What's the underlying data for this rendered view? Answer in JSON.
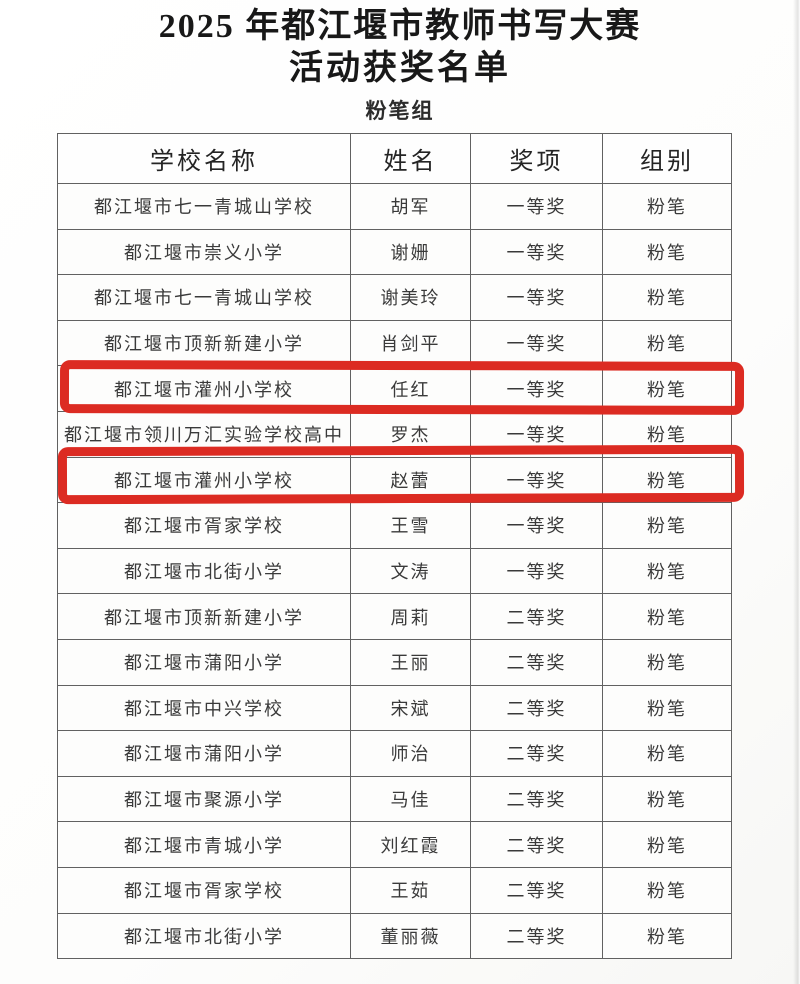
{
  "page": {
    "title_line1": "2025 年都江堰市教师书写大赛",
    "title_line2": "活动获奖名单",
    "group_label": "粉笔组"
  },
  "table": {
    "headers": [
      "学校名称",
      "姓名",
      "奖项",
      "组别"
    ],
    "rows": [
      {
        "school": "都江堰市七一青城山学校",
        "name": "胡军",
        "award": "一等奖",
        "group": "粉笔",
        "highlighted": false
      },
      {
        "school": "都江堰市崇义小学",
        "name": "谢姗",
        "award": "一等奖",
        "group": "粉笔",
        "highlighted": false
      },
      {
        "school": "都江堰市七一青城山学校",
        "name": "谢美玲",
        "award": "一等奖",
        "group": "粉笔",
        "highlighted": false
      },
      {
        "school": "都江堰市顶新新建小学",
        "name": "肖剑平",
        "award": "一等奖",
        "group": "粉笔",
        "highlighted": false
      },
      {
        "school": "都江堰市灌州小学校",
        "name": "任红",
        "award": "一等奖",
        "group": "粉笔",
        "highlighted": true
      },
      {
        "school": "都江堰市领川万汇实验学校高中",
        "name": "罗杰",
        "award": "一等奖",
        "group": "粉笔",
        "highlighted": false
      },
      {
        "school": "都江堰市灌州小学校",
        "name": "赵蕾",
        "award": "一等奖",
        "group": "粉笔",
        "highlighted": true
      },
      {
        "school": "都江堰市胥家学校",
        "name": "王雪",
        "award": "一等奖",
        "group": "粉笔",
        "highlighted": false
      },
      {
        "school": "都江堰市北街小学",
        "name": "文涛",
        "award": "一等奖",
        "group": "粉笔",
        "highlighted": false
      },
      {
        "school": "都江堰市顶新新建小学",
        "name": "周莉",
        "award": "二等奖",
        "group": "粉笔",
        "highlighted": false
      },
      {
        "school": "都江堰市蒲阳小学",
        "name": "王丽",
        "award": "二等奖",
        "group": "粉笔",
        "highlighted": false
      },
      {
        "school": "都江堰市中兴学校",
        "name": "宋斌",
        "award": "二等奖",
        "group": "粉笔",
        "highlighted": false
      },
      {
        "school": "都江堰市蒲阳小学",
        "name": "师治",
        "award": "二等奖",
        "group": "粉笔",
        "highlighted": false
      },
      {
        "school": "都江堰市聚源小学",
        "name": "马佳",
        "award": "二等奖",
        "group": "粉笔",
        "highlighted": false
      },
      {
        "school": "都江堰市青城小学",
        "name": "刘红霞",
        "award": "二等奖",
        "group": "粉笔",
        "highlighted": false
      },
      {
        "school": "都江堰市胥家学校",
        "name": "王茹",
        "award": "二等奖",
        "group": "粉笔",
        "highlighted": false
      },
      {
        "school": "都江堰市北街小学",
        "name": "董丽薇",
        "award": "二等奖",
        "group": "粉笔",
        "highlighted": false
      }
    ]
  },
  "colors": {
    "highlight_red": "#dc2b22",
    "table_border": "#616161",
    "body_text": "#3a3a3a",
    "title_text": "#181818",
    "paper_background": "#fcfcfb"
  }
}
